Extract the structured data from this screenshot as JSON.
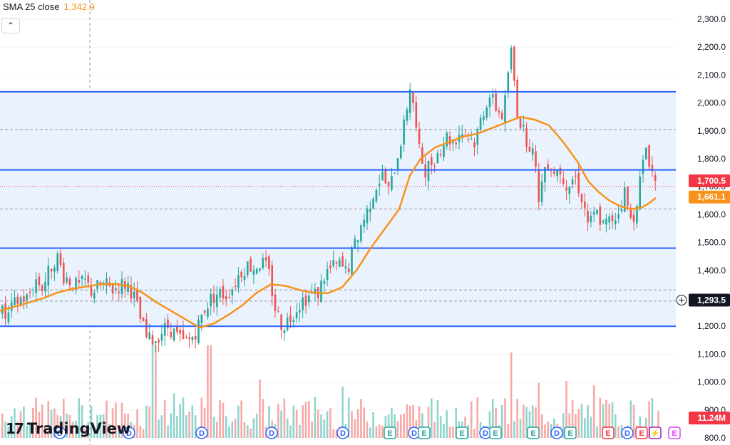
{
  "indicator": {
    "name": "SMA 25 close",
    "value": "1,342.9"
  },
  "collapse_icon": "chevron-up-icon",
  "brand": {
    "name": "TradingView"
  },
  "price_labels": {
    "last": {
      "value": "1,700.5",
      "color": "#f23645"
    },
    "sma": {
      "value": "1,661.1",
      "color": "#f7931a"
    },
    "crosshair": {
      "value": "1,293.5",
      "color": "#131722"
    },
    "volume": {
      "value": "11.24M",
      "color": "#f23645"
    }
  },
  "chart_data": {
    "type": "candlestick",
    "y_axis": {
      "ticks": [
        "2,300.0",
        "2,200.0",
        "2,100.0",
        "2,000.0",
        "1,900.0",
        "1,800.0",
        "1,700.0",
        "1,600.0",
        "1,500.0",
        "1,400.0",
        "1,300.0",
        "1,200.0",
        "1,100.0",
        "1,000.0",
        "900.0",
        "800.0"
      ],
      "range": [
        790,
        2340
      ]
    },
    "horizontal_levels": [
      2040,
      1760,
      1480,
      1200
    ],
    "shaded_zone": [
      1200,
      2040
    ],
    "dashed_levels": [
      1905,
      1620,
      1330,
      1290
    ],
    "last_price": 1700.5,
    "sma_last": 1661.1,
    "crosshair_price": 1293.5,
    "colors": {
      "up": "#26a69a",
      "down": "#ef5350",
      "sma": "#f7931a",
      "level": "#2962ff",
      "zone": "#eaf2fe"
    },
    "close_path": [
      [
        0,
        1255
      ],
      [
        8,
        1225
      ],
      [
        18,
        1275
      ],
      [
        28,
        1300
      ],
      [
        38,
        1300
      ],
      [
        48,
        1370
      ],
      [
        58,
        1340
      ],
      [
        68,
        1400
      ],
      [
        78,
        1455
      ],
      [
        88,
        1380
      ],
      [
        98,
        1360
      ],
      [
        108,
        1340
      ],
      [
        118,
        1360
      ],
      [
        128,
        1320
      ],
      [
        138,
        1350
      ],
      [
        148,
        1345
      ],
      [
        158,
        1330
      ],
      [
        168,
        1350
      ],
      [
        178,
        1350
      ],
      [
        188,
        1300
      ],
      [
        195,
        1230
      ],
      [
        205,
        1150
      ],
      [
        215,
        1150
      ],
      [
        225,
        1180
      ],
      [
        235,
        1200
      ],
      [
        245,
        1170
      ],
      [
        255,
        1140
      ],
      [
        265,
        1150
      ],
      [
        275,
        1190
      ],
      [
        285,
        1260
      ],
      [
        295,
        1300
      ],
      [
        305,
        1320
      ],
      [
        315,
        1310
      ],
      [
        325,
        1340
      ],
      [
        335,
        1390
      ],
      [
        345,
        1420
      ],
      [
        355,
        1410
      ],
      [
        365,
        1430
      ],
      [
        375,
        1400
      ],
      [
        385,
        1260
      ],
      [
        395,
        1200
      ],
      [
        405,
        1230
      ],
      [
        415,
        1270
      ],
      [
        425,
        1300
      ],
      [
        435,
        1310
      ],
      [
        445,
        1320
      ],
      [
        455,
        1390
      ],
      [
        465,
        1410
      ],
      [
        475,
        1420
      ],
      [
        485,
        1390
      ],
      [
        495,
        1480
      ],
      [
        505,
        1560
      ],
      [
        515,
        1620
      ],
      [
        525,
        1700
      ],
      [
        535,
        1740
      ],
      [
        545,
        1680
      ],
      [
        555,
        1800
      ],
      [
        565,
        1910
      ],
      [
        575,
        2080
      ],
      [
        585,
        1840
      ],
      [
        595,
        1760
      ],
      [
        605,
        1790
      ],
      [
        615,
        1830
      ],
      [
        625,
        1880
      ],
      [
        635,
        1860
      ],
      [
        645,
        1900
      ],
      [
        655,
        1880
      ],
      [
        665,
        1860
      ],
      [
        675,
        1960
      ],
      [
        685,
        2030
      ],
      [
        695,
        1980
      ],
      [
        705,
        1950
      ],
      [
        715,
        2200
      ],
      [
        725,
        1960
      ],
      [
        735,
        1880
      ],
      [
        745,
        1840
      ],
      [
        755,
        1660
      ],
      [
        765,
        1800
      ],
      [
        775,
        1760
      ],
      [
        785,
        1760
      ],
      [
        795,
        1700
      ],
      [
        805,
        1740
      ],
      [
        815,
        1660
      ],
      [
        825,
        1560
      ],
      [
        835,
        1610
      ],
      [
        845,
        1560
      ],
      [
        855,
        1580
      ],
      [
        865,
        1600
      ],
      [
        875,
        1680
      ],
      [
        885,
        1560
      ],
      [
        895,
        1700
      ],
      [
        905,
        1840
      ],
      [
        915,
        1740
      ],
      [
        920,
        1700
      ]
    ],
    "sma_points": [
      [
        0,
        1255
      ],
      [
        20,
        1270
      ],
      [
        40,
        1285
      ],
      [
        60,
        1300
      ],
      [
        80,
        1320
      ],
      [
        100,
        1333
      ],
      [
        120,
        1342
      ],
      [
        140,
        1350
      ],
      [
        160,
        1352
      ],
      [
        180,
        1345
      ],
      [
        200,
        1320
      ],
      [
        220,
        1285
      ],
      [
        240,
        1255
      ],
      [
        260,
        1225
      ],
      [
        280,
        1195
      ],
      [
        300,
        1210
      ],
      [
        320,
        1240
      ],
      [
        340,
        1275
      ],
      [
        360,
        1320
      ],
      [
        380,
        1350
      ],
      [
        400,
        1345
      ],
      [
        420,
        1330
      ],
      [
        440,
        1320
      ],
      [
        460,
        1318
      ],
      [
        480,
        1340
      ],
      [
        500,
        1400
      ],
      [
        520,
        1480
      ],
      [
        540,
        1550
      ],
      [
        560,
        1620
      ],
      [
        575,
        1740
      ],
      [
        590,
        1800
      ],
      [
        610,
        1840
      ],
      [
        630,
        1860
      ],
      [
        650,
        1880
      ],
      [
        670,
        1890
      ],
      [
        690,
        1910
      ],
      [
        710,
        1930
      ],
      [
        730,
        1950
      ],
      [
        750,
        1940
      ],
      [
        770,
        1920
      ],
      [
        790,
        1860
      ],
      [
        810,
        1790
      ],
      [
        825,
        1720
      ],
      [
        840,
        1680
      ],
      [
        855,
        1650
      ],
      [
        870,
        1630
      ],
      [
        885,
        1620
      ],
      [
        900,
        1625
      ],
      [
        910,
        1640
      ],
      [
        920,
        1660
      ]
    ],
    "volume": {
      "range": [
        0,
        35
      ],
      "max_value_M": 35,
      "bars_every_px": 4.3
    },
    "event_markers": [
      {
        "x": 84,
        "label": "D",
        "kind": "dividend"
      },
      {
        "x": 181,
        "label": "D",
        "kind": "dividend"
      },
      {
        "x": 283,
        "label": "D",
        "kind": "dividend"
      },
      {
        "x": 381,
        "label": "D",
        "kind": "dividend"
      },
      {
        "x": 481,
        "label": "D",
        "kind": "dividend"
      },
      {
        "x": 547,
        "label": "E",
        "kind": "earnings"
      },
      {
        "x": 581,
        "label": "D",
        "kind": "dividend"
      },
      {
        "x": 595,
        "label": "E",
        "kind": "earnings"
      },
      {
        "x": 648,
        "label": "E",
        "kind": "earnings"
      },
      {
        "x": 681,
        "label": "D",
        "kind": "dividend"
      },
      {
        "x": 695,
        "label": "E",
        "kind": "earnings"
      },
      {
        "x": 748,
        "label": "E",
        "kind": "earnings"
      },
      {
        "x": 781,
        "label": "D",
        "kind": "dividend"
      },
      {
        "x": 800,
        "label": "E",
        "kind": "earnings"
      },
      {
        "x": 853,
        "label": "E",
        "kind": "earnings-red"
      },
      {
        "x": 880,
        "label": "D",
        "kind": "dividend"
      },
      {
        "x": 900,
        "label": "E",
        "kind": "earnings-red"
      },
      {
        "x": 919,
        "label": "⚡",
        "kind": "flash"
      },
      {
        "x": 946,
        "label": "E",
        "kind": "earnings-future"
      }
    ]
  }
}
